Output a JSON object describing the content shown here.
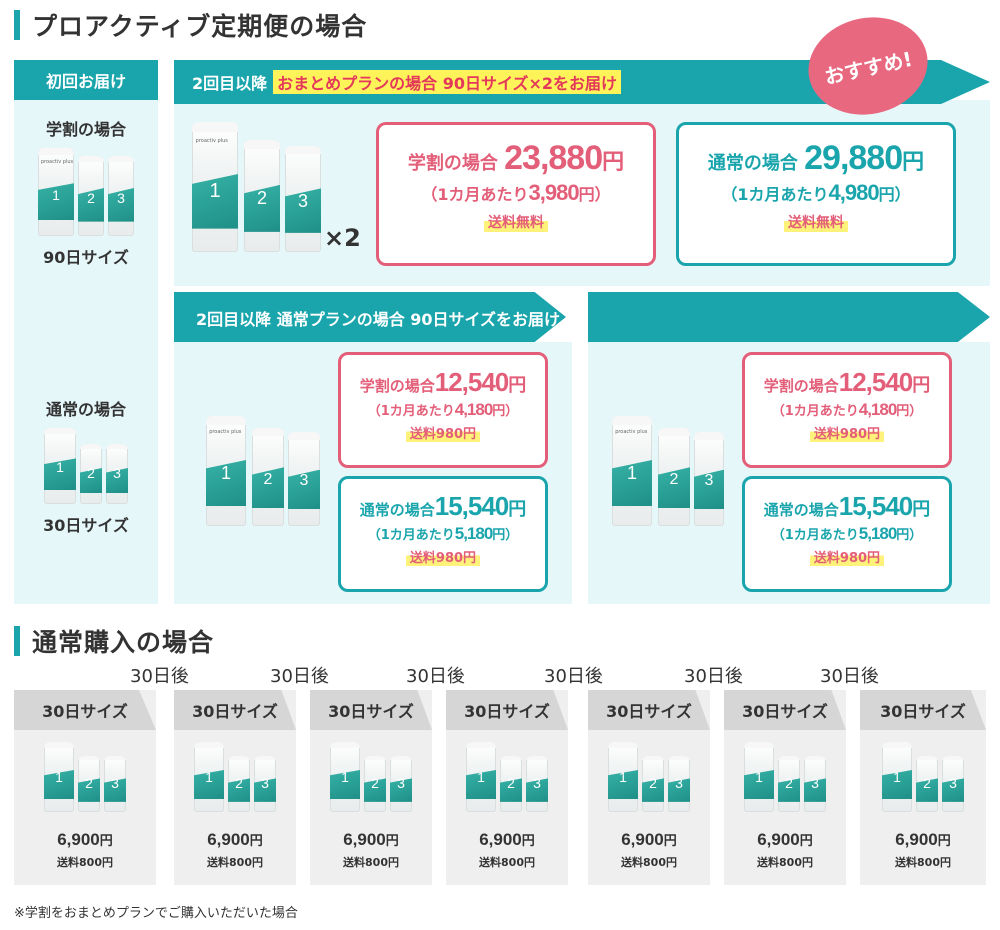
{
  "proactive": {
    "heading": "プロアクティブ定期便の場合",
    "first": {
      "header": "初回お届け",
      "student_label": "学割の場合",
      "student_size": "90日サイズ",
      "normal_label": "通常の場合",
      "normal_size": "30日サイズ"
    },
    "bundle": {
      "banner_prefix": "2回目以降",
      "banner_highlight": "おまとめプランの場合  90日サイズ×2をお届け",
      "badge": "おすすめ!",
      "multiplier": "×2",
      "student": {
        "label": "学割の場合",
        "price": "23,880",
        "yen": "円",
        "monthly_prefix": "（1カ月あたり",
        "monthly": "3,980",
        "monthly_suffix": "円）",
        "shipping": "送料無料"
      },
      "regular": {
        "label": "通常の場合",
        "price": "29,880",
        "yen": "円",
        "monthly_prefix": "（1カ月あたり",
        "monthly": "4,980",
        "monthly_suffix": "円）",
        "shipping": "送料無料"
      }
    },
    "normal_plan": {
      "banner": "2回目以降  通常プランの場合  90日サイズをお届け",
      "panels": [
        {
          "student": {
            "label": "学割の場合",
            "price": "12,540",
            "yen": "円",
            "monthly_prefix": "（1カ月あたり",
            "monthly": "4,180",
            "monthly_suffix": "円）",
            "shipping": "送料980円"
          },
          "regular": {
            "label": "通常の場合",
            "price": "15,540",
            "yen": "円",
            "monthly_prefix": "（1カ月あたり",
            "monthly": "5,180",
            "monthly_suffix": "円）",
            "shipping": "送料980円"
          }
        },
        {
          "student": {
            "label": "学割の場合",
            "price": "12,540",
            "yen": "円",
            "monthly_prefix": "（1カ月あたり",
            "monthly": "4,180",
            "monthly_suffix": "円）",
            "shipping": "送料980円"
          },
          "regular": {
            "label": "通常の場合",
            "price": "15,540",
            "yen": "円",
            "monthly_prefix": "（1カ月あたり",
            "monthly": "5,180",
            "monthly_suffix": "円）",
            "shipping": "送料980円"
          }
        }
      ]
    },
    "tube_numbers": [
      "1",
      "2",
      "3"
    ],
    "tube_logo": "proactiv plus"
  },
  "normal_purchase": {
    "heading": "通常購入の場合",
    "interval": "30日後",
    "cards": [
      {
        "size": "30日サイズ",
        "price": "6,900",
        "yen": "円",
        "shipping": "送料800円"
      },
      {
        "size": "30日サイズ",
        "price": "6,900",
        "yen": "円",
        "shipping": "送料800円"
      },
      {
        "size": "30日サイズ",
        "price": "6,900",
        "yen": "円",
        "shipping": "送料800円"
      },
      {
        "size": "30日サイズ",
        "price": "6,900",
        "yen": "円",
        "shipping": "送料800円"
      },
      {
        "size": "30日サイズ",
        "price": "6,900",
        "yen": "円",
        "shipping": "送料800円"
      },
      {
        "size": "30日サイズ",
        "price": "6,900",
        "yen": "円",
        "shipping": "送料800円"
      },
      {
        "size": "30日サイズ",
        "price": "6,900",
        "yen": "円",
        "shipping": "送料800円"
      }
    ]
  },
  "footnote": "※学割をおまとめプランでご購入いただいた場合",
  "colors": {
    "teal": "#1aa5ad",
    "pink": "#e35e78",
    "light_teal": "#e6f7fa",
    "gray": "#efefef",
    "highlight": "#fff35a"
  }
}
